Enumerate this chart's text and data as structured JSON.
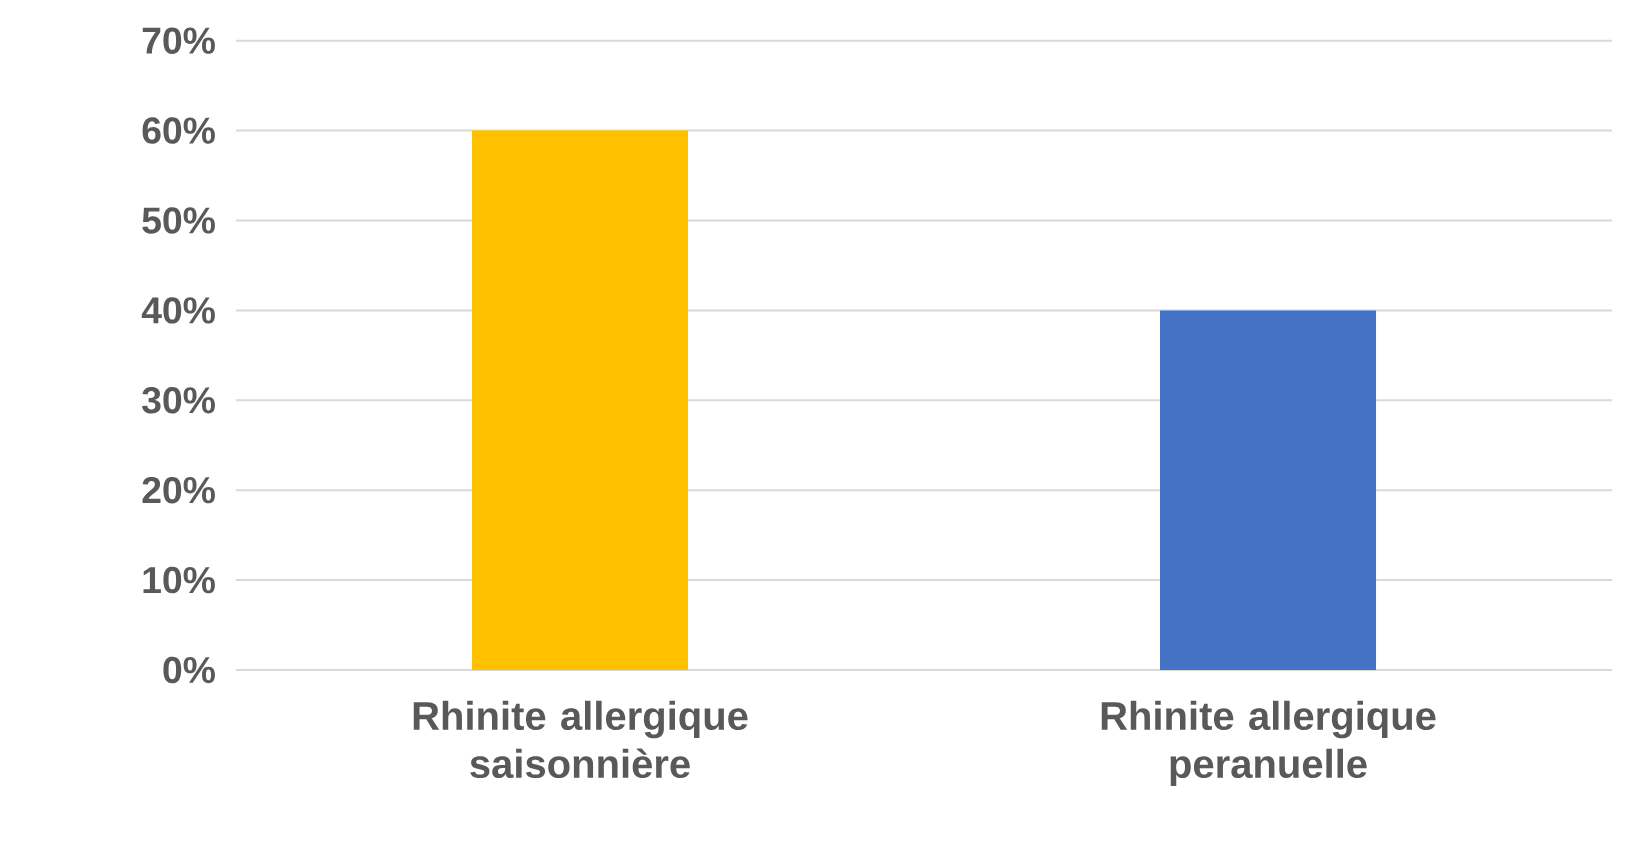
{
  "chart_data": {
    "type": "bar",
    "categories": [
      "Rhinite allergique saisonnière",
      "Rhinite allergique peranuelle"
    ],
    "values": [
      60,
      40
    ],
    "colors": [
      "#ffc000",
      "#4472c4"
    ],
    "ylim": [
      0,
      70
    ],
    "yticks": [
      {
        "value": 0,
        "label": "0%"
      },
      {
        "value": 10,
        "label": "10%"
      },
      {
        "value": 20,
        "label": "20%"
      },
      {
        "value": 30,
        "label": "30%"
      },
      {
        "value": 40,
        "label": "40%"
      },
      {
        "value": 50,
        "label": "50%"
      },
      {
        "value": 60,
        "label": "60%"
      },
      {
        "value": 70,
        "label": "70%"
      }
    ],
    "grid": "y"
  }
}
